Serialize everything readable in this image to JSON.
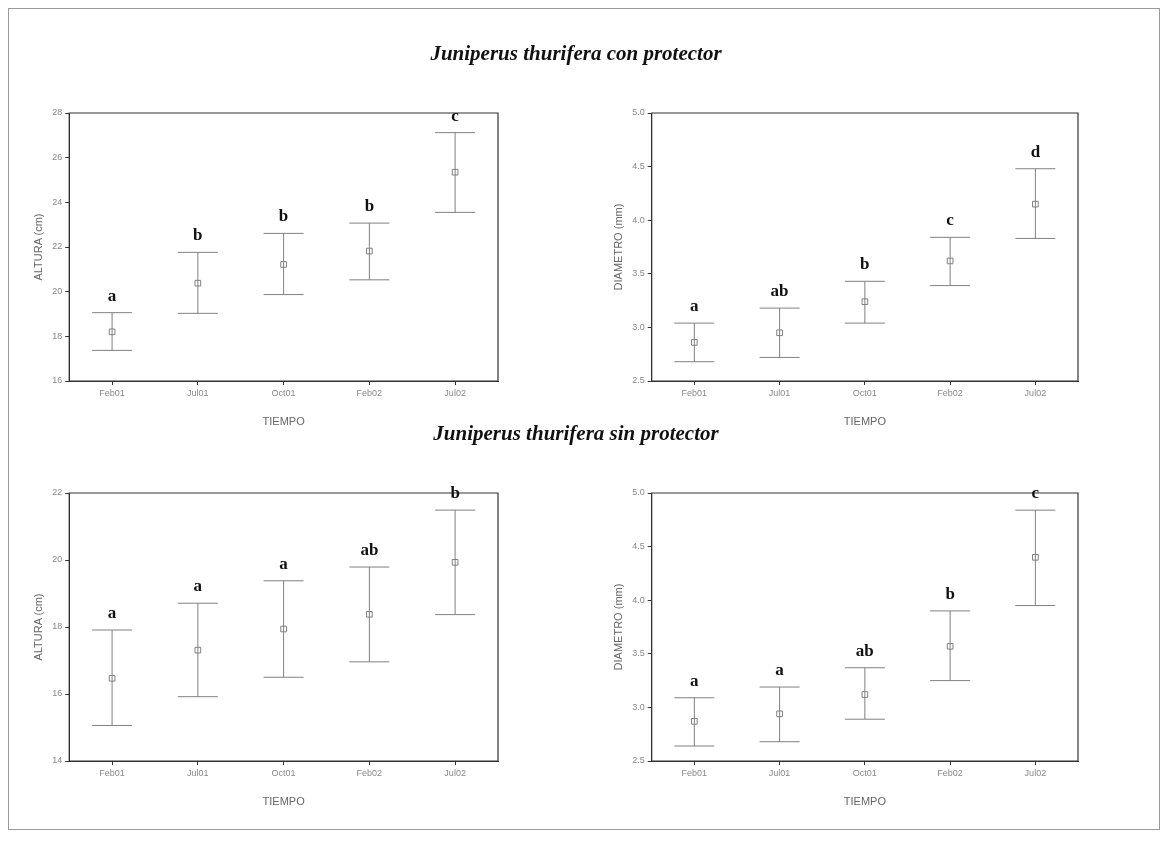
{
  "chart_data": [
    {
      "type": "scatter",
      "title": "Juniperus thurifera con protector",
      "categories": [
        "Feb01",
        "Jul01",
        "Oct01",
        "Feb02",
        "Jul02"
      ],
      "xlabel": "TIEMPO",
      "ylabel": "ALTURA (cm)",
      "ylim": [
        16,
        28
      ],
      "yticks": [
        16,
        18,
        20,
        22,
        24,
        26,
        28
      ],
      "grid": false,
      "legend": false,
      "marker": "square",
      "color": "#808080",
      "values": [
        18.2,
        20.38,
        21.22,
        21.82,
        25.35
      ],
      "errors": [
        [
          17.37,
          19.06
        ],
        [
          19.03,
          21.76
        ],
        [
          19.87,
          22.61
        ],
        [
          20.53,
          23.07
        ],
        [
          23.55,
          27.12
        ]
      ],
      "annotations": [
        "a",
        "b",
        "b",
        "b",
        "c"
      ]
    },
    {
      "type": "scatter",
      "categories": [
        "Feb01",
        "Jul01",
        "Oct01",
        "Feb02",
        "Jul02"
      ],
      "xlabel": "TIEMPO",
      "ylabel": "DIAMETRO (mm)",
      "ylim": [
        2.5,
        5
      ],
      "yticks": [
        2.5,
        {
          "value": 3,
          "label": "3.0"
        },
        3.5,
        {
          "value": 4,
          "label": "4.0"
        },
        4.5,
        {
          "value": 5,
          "label": "5.0"
        }
      ],
      "grid": false,
      "legend": false,
      "marker": "square",
      "color": "#808080",
      "values": [
        2.86,
        2.95,
        3.24,
        3.62,
        4.15
      ],
      "errors": [
        [
          2.68,
          3.04
        ],
        [
          2.72,
          3.18
        ],
        [
          3.04,
          3.43
        ],
        [
          3.39,
          3.84
        ],
        [
          3.83,
          4.48
        ]
      ],
      "annotations": [
        "a",
        "ab",
        "b",
        "c",
        "d"
      ]
    },
    {
      "type": "scatter",
      "title": "Juniperus thurifera sin protector",
      "categories": [
        "Feb01",
        "Jul01",
        "Oct01",
        "Feb02",
        "Jul02"
      ],
      "xlabel": "TIEMPO",
      "ylabel": "ALTURA (cm)",
      "ylim": [
        14,
        22
      ],
      "yticks": [
        14,
        16,
        18,
        20,
        22
      ],
      "grid": false,
      "legend": false,
      "marker": "square",
      "color": "#808080",
      "values": [
        16.47,
        17.31,
        17.94,
        18.38,
        19.93
      ],
      "errors": [
        [
          15.06,
          17.91
        ],
        [
          15.92,
          18.71
        ],
        [
          16.5,
          19.38
        ],
        [
          16.96,
          19.79
        ],
        [
          18.37,
          21.49
        ]
      ],
      "annotations": [
        "a",
        "a",
        "a",
        "ab",
        "b"
      ]
    },
    {
      "type": "scatter",
      "categories": [
        "Feb01",
        "Jul01",
        "Oct01",
        "Feb02",
        "Jul02"
      ],
      "xlabel": "TIEMPO",
      "ylabel": "DIAMETRO (mm)",
      "ylim": [
        2.5,
        5
      ],
      "yticks": [
        2.5,
        {
          "value": 3,
          "label": "3.0"
        },
        3.5,
        {
          "value": 4,
          "label": "4.0"
        },
        4.5,
        {
          "value": 5,
          "label": "5.0"
        }
      ],
      "grid": false,
      "legend": false,
      "marker": "square",
      "color": "#808080",
      "values": [
        2.87,
        2.94,
        3.12,
        3.57,
        4.4
      ],
      "errors": [
        [
          2.64,
          3.09
        ],
        [
          2.68,
          3.19
        ],
        [
          2.89,
          3.37
        ],
        [
          3.25,
          3.9
        ],
        [
          3.95,
          4.84
        ]
      ],
      "annotations": [
        "a",
        "a",
        "ab",
        "b",
        "c"
      ]
    }
  ]
}
